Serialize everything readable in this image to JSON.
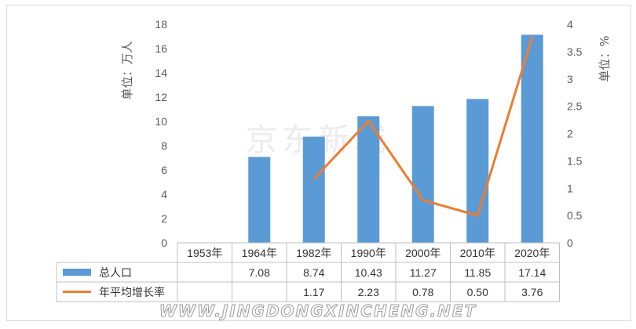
{
  "chart_data": {
    "type": "bar",
    "categories": [
      "1953年",
      "1964年",
      "1982年",
      "1990年",
      "2000年",
      "2010年",
      "2020年"
    ],
    "series": [
      {
        "name": "总人口",
        "type": "bar",
        "axis": "left",
        "color": "#5b9bd5",
        "values": [
          null,
          7.08,
          8.74,
          10.43,
          11.27,
          11.85,
          17.14
        ],
        "labels": [
          "",
          "7.08",
          "8.74",
          "10.43",
          "11.27",
          "11.85",
          "17.14"
        ]
      },
      {
        "name": "年平均增长率",
        "type": "line",
        "axis": "right",
        "color": "#ed7d31",
        "values": [
          null,
          null,
          1.17,
          2.23,
          0.78,
          0.5,
          3.76
        ],
        "labels": [
          "",
          "",
          "1.17",
          "2.23",
          "0.78",
          "0.50",
          "3.76"
        ]
      }
    ],
    "ylabel_left": "单位：万人",
    "ylabel_right": "单位：%",
    "ylim_left": [
      0,
      18
    ],
    "yticks_left": [
      "0",
      "2",
      "4",
      "6",
      "8",
      "10",
      "12",
      "14",
      "16",
      "18"
    ],
    "ylim_right": [
      0,
      4
    ],
    "yticks_right": [
      "0",
      "0.5",
      "1",
      "1.5",
      "2",
      "2.5",
      "3",
      "3.5",
      "4"
    ],
    "grid": false,
    "legend": "data-table"
  },
  "watermarks": {
    "center": "京东新城",
    "bottom": "WWW.JINGDONGXINCHENG.NET"
  }
}
